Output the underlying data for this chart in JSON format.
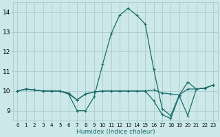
{
  "xlabel": "Humidex (Indice chaleur)",
  "x_ticks": [
    0,
    1,
    2,
    3,
    4,
    5,
    6,
    7,
    8,
    9,
    10,
    11,
    12,
    13,
    14,
    15,
    16,
    17,
    18,
    19,
    20,
    21,
    22,
    23
  ],
  "ylim": [
    8.5,
    14.5
  ],
  "xlim": [
    -0.5,
    23.5
  ],
  "yticks": [
    9,
    10,
    11,
    12,
    13,
    14
  ],
  "background_color": "#cce8e8",
  "grid_color": "#aacccc",
  "line_color": "#1a6b6b",
  "series": [
    [
      10.0,
      10.1,
      10.05,
      10.0,
      10.0,
      10.0,
      9.85,
      9.0,
      9.0,
      9.7,
      11.35,
      12.9,
      13.85,
      14.2,
      13.85,
      13.4,
      11.1,
      9.1,
      8.75,
      9.8,
      10.45,
      10.1,
      10.15,
      10.3
    ],
    [
      10.0,
      10.1,
      10.05,
      10.0,
      10.0,
      10.0,
      9.9,
      9.55,
      9.85,
      9.95,
      10.0,
      10.0,
      10.0,
      10.0,
      10.0,
      10.0,
      10.05,
      9.9,
      9.85,
      9.8,
      10.1,
      10.1,
      10.15,
      10.3
    ],
    [
      10.0,
      10.1,
      10.05,
      10.0,
      10.0,
      10.0,
      9.85,
      9.55,
      9.85,
      9.95,
      10.0,
      10.0,
      10.0,
      10.0,
      10.0,
      10.0,
      9.5,
      8.8,
      8.6,
      9.75,
      8.75,
      10.1,
      10.15,
      10.3
    ]
  ]
}
